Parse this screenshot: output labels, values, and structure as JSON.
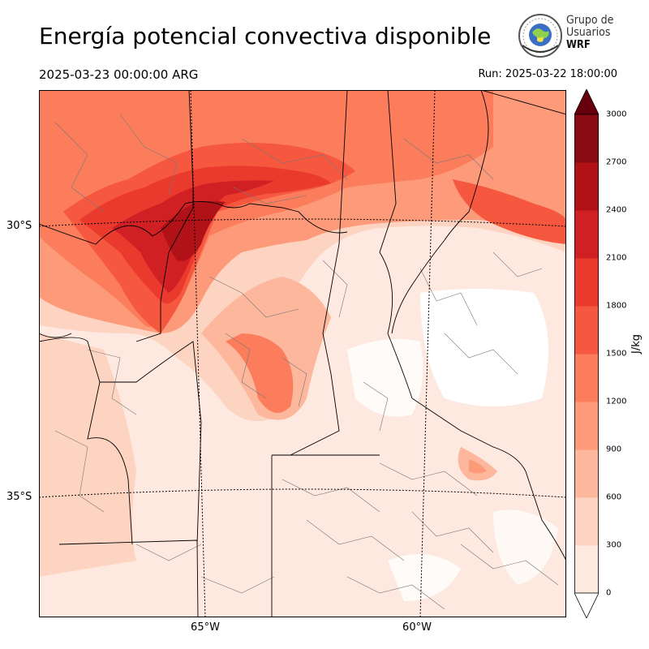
{
  "title": "Energía potencial convectiva disponible",
  "valid_time": "2025-03-23 00:00:00 ARG",
  "run_time": "Run: 2025-03-22 18:00:00",
  "logo": {
    "line1": "Grupo de",
    "line2": "Usuarios",
    "line3": "WRF",
    "icon": "wrf-users-group-seal"
  },
  "map": {
    "lat_labels": [
      "30°S",
      "35°S"
    ],
    "lon_labels": [
      "65°W",
      "60°W"
    ]
  },
  "colorbar": {
    "unit": "J/kg",
    "ticks": [
      "0",
      "300",
      "600",
      "900",
      "1200",
      "1500",
      "1800",
      "2100",
      "2400",
      "2700",
      "3000"
    ],
    "colors": [
      "#fee9e0",
      "#fdd3c1",
      "#fcb79d",
      "#fc9a7a",
      "#fb7d5c",
      "#f6573f",
      "#e93a2d",
      "#d02024",
      "#b01217",
      "#8a0b12"
    ],
    "over_color": "#67000d"
  }
}
